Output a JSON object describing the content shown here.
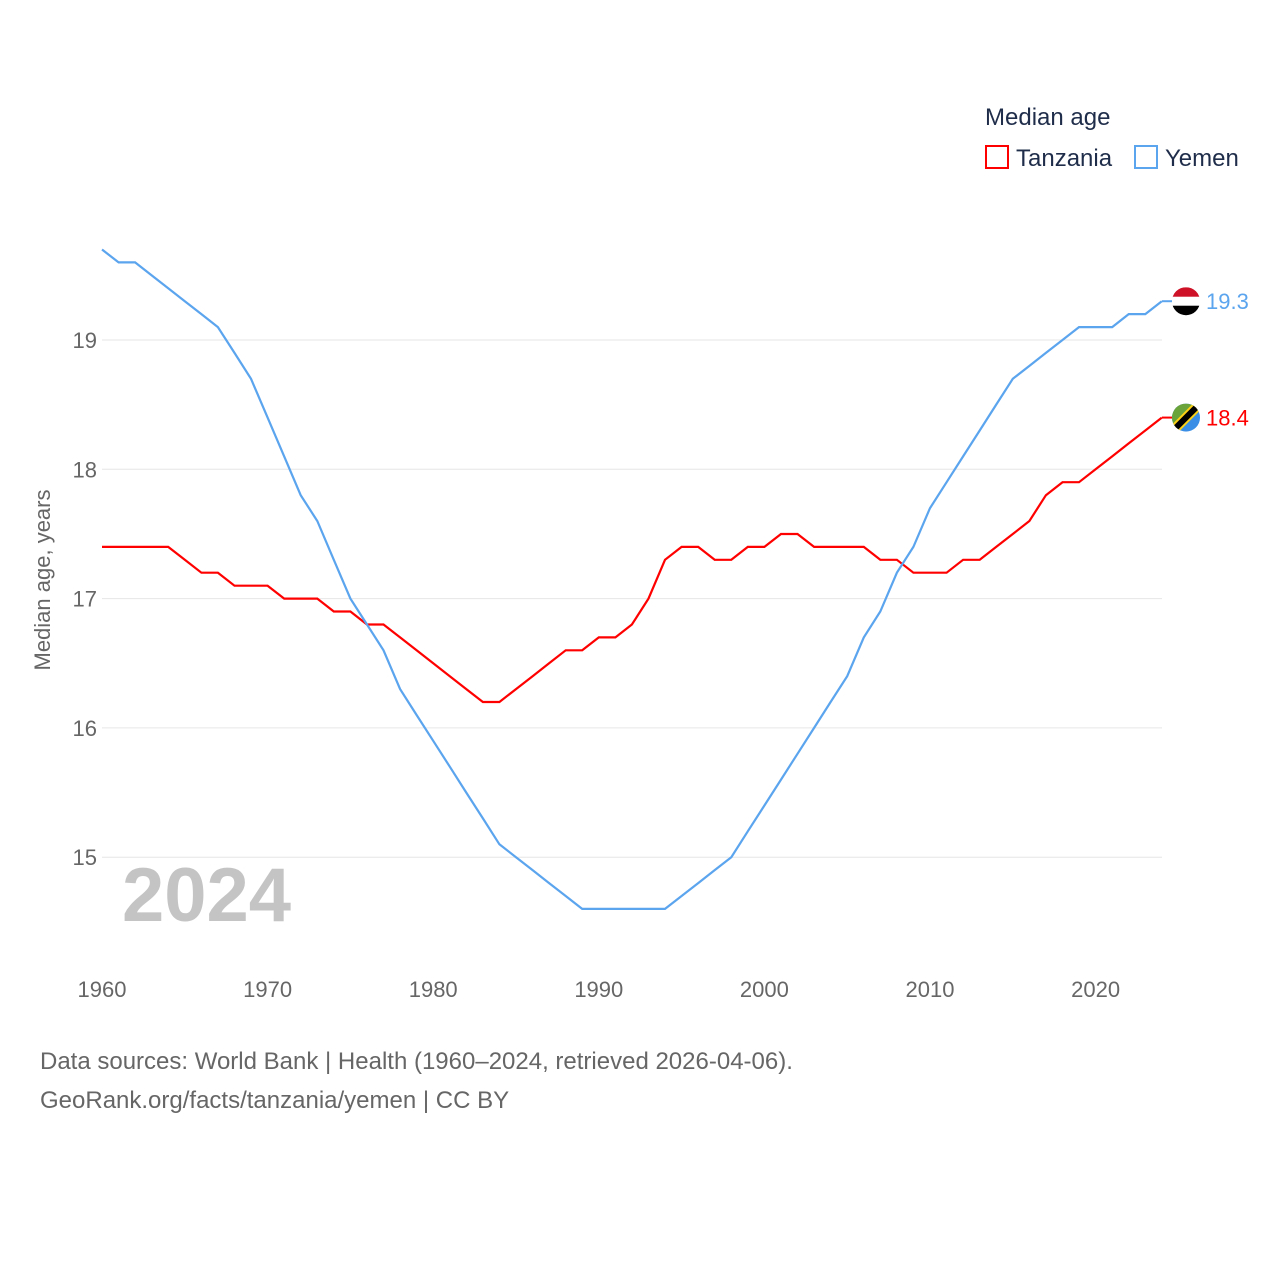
{
  "chart_data": {
    "type": "line",
    "title": "Median age",
    "ylabel": "Median age, years",
    "xlabel": "",
    "year_label": "2024",
    "xlim": [
      1960,
      2024
    ],
    "ylim": [
      14.4,
      19.8
    ],
    "xticks": [
      "1960",
      "1970",
      "1980",
      "1990",
      "2000",
      "2010",
      "2020"
    ],
    "yticks": [
      "15",
      "16",
      "17",
      "18",
      "19"
    ],
    "grid": true,
    "legend_placement": "top-right",
    "x": [
      1960,
      1961,
      1962,
      1963,
      1964,
      1965,
      1966,
      1967,
      1968,
      1969,
      1970,
      1971,
      1972,
      1973,
      1974,
      1975,
      1976,
      1977,
      1978,
      1979,
      1980,
      1981,
      1982,
      1983,
      1984,
      1985,
      1986,
      1987,
      1988,
      1989,
      1990,
      1991,
      1992,
      1993,
      1994,
      1995,
      1996,
      1997,
      1998,
      1999,
      2000,
      2001,
      2002,
      2003,
      2004,
      2005,
      2006,
      2007,
      2008,
      2009,
      2010,
      2011,
      2012,
      2013,
      2014,
      2015,
      2016,
      2017,
      2018,
      2019,
      2020,
      2021,
      2022,
      2023,
      2024
    ],
    "series": [
      {
        "name": "Tanzania",
        "color": "#ff0000",
        "end_label": "18.4",
        "values": [
          17.4,
          17.4,
          17.4,
          17.4,
          17.4,
          17.3,
          17.2,
          17.2,
          17.1,
          17.1,
          17.1,
          17.0,
          17.0,
          17.0,
          16.9,
          16.9,
          16.8,
          16.8,
          16.7,
          16.6,
          16.5,
          16.4,
          16.3,
          16.2,
          16.2,
          16.3,
          16.4,
          16.5,
          16.6,
          16.6,
          16.7,
          16.7,
          16.8,
          17.0,
          17.3,
          17.4,
          17.4,
          17.3,
          17.3,
          17.4,
          17.4,
          17.5,
          17.5,
          17.4,
          17.4,
          17.4,
          17.4,
          17.3,
          17.3,
          17.2,
          17.2,
          17.2,
          17.3,
          17.3,
          17.4,
          17.5,
          17.6,
          17.8,
          17.9,
          17.9,
          18.0,
          18.1,
          18.2,
          18.3,
          18.4
        ]
      },
      {
        "name": "Yemen",
        "color": "#5ba4ee",
        "end_label": "19.3",
        "values": [
          19.7,
          19.6,
          19.6,
          19.5,
          19.4,
          19.3,
          19.2,
          19.1,
          18.9,
          18.7,
          18.4,
          18.1,
          17.8,
          17.6,
          17.3,
          17.0,
          16.8,
          16.6,
          16.3,
          16.1,
          15.9,
          15.7,
          15.5,
          15.3,
          15.1,
          15.0,
          14.9,
          14.8,
          14.7,
          14.6,
          14.6,
          14.6,
          14.6,
          14.6,
          14.6,
          14.7,
          14.8,
          14.9,
          15.0,
          15.2,
          15.4,
          15.6,
          15.8,
          16.0,
          16.2,
          16.4,
          16.7,
          16.9,
          17.2,
          17.4,
          17.7,
          17.9,
          18.1,
          18.3,
          18.5,
          18.7,
          18.8,
          18.9,
          19.0,
          19.1,
          19.1,
          19.1,
          19.2,
          19.2,
          19.3
        ]
      }
    ]
  },
  "footer": {
    "line1": "Data sources: World Bank | Health (1960–2024, retrieved 2026-04-06).",
    "line2": "GeoRank.org/facts/tanzania/yemen | CC BY"
  }
}
